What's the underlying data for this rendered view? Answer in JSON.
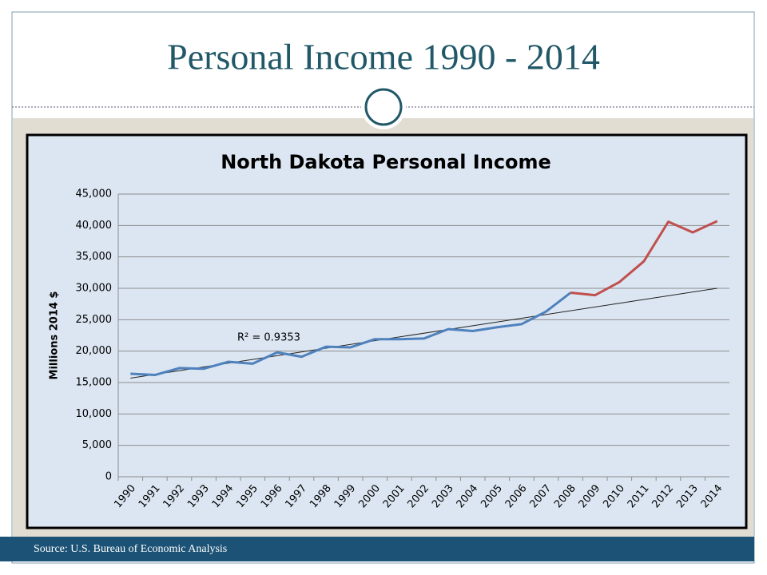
{
  "header": {
    "title": "Personal Income 1990 - 2014"
  },
  "chart_data": {
    "type": "line",
    "title": "North Dakota Personal Income",
    "y_label": "Millions 2014 $",
    "categories": [
      "1990",
      "1991",
      "1992",
      "1993",
      "1994",
      "1995",
      "1996",
      "1997",
      "1998",
      "1999",
      "2000",
      "2001",
      "2002",
      "2003",
      "2004",
      "2005",
      "2006",
      "2007",
      "2008",
      "2009",
      "2010",
      "2011",
      "2012",
      "2013",
      "2014"
    ],
    "series": [
      {
        "color": "#4f81bd",
        "values": [
          16400,
          16200,
          17300,
          17200,
          18300,
          18000,
          19800,
          19100,
          20700,
          20600,
          21900,
          21900,
          22000,
          23500,
          23200,
          23800,
          24300,
          26300,
          29300,
          null,
          null,
          null,
          null,
          null,
          null
        ]
      },
      {
        "color": "#c0504d",
        "values": [
          null,
          null,
          null,
          null,
          null,
          null,
          null,
          null,
          null,
          null,
          null,
          null,
          null,
          null,
          null,
          null,
          null,
          null,
          29300,
          28900,
          31000,
          34300,
          40600,
          38900,
          40700
        ]
      }
    ],
    "trendline": {
      "values": [
        15700,
        30000
      ],
      "color": "#222222"
    },
    "annotation": "R² = 0.9353",
    "ylim": [
      0,
      45000
    ],
    "yticks": [
      0,
      {
        "value": 5000,
        "label": "5,000"
      },
      {
        "value": 10000,
        "label": "10,000"
      },
      {
        "value": 15000,
        "label": "15,000"
      },
      {
        "value": 20000,
        "label": "20,000"
      },
      {
        "value": 25000,
        "label": "25,000"
      },
      {
        "value": 30000,
        "label": "30,000"
      },
      {
        "value": 35000,
        "label": "35,000"
      },
      {
        "value": 40000,
        "label": "40,000"
      },
      {
        "value": 45000,
        "label": "45,000"
      }
    ],
    "grid": true
  },
  "footer": {
    "source": "Source: U.S. Bureau of Economic Analysis"
  }
}
